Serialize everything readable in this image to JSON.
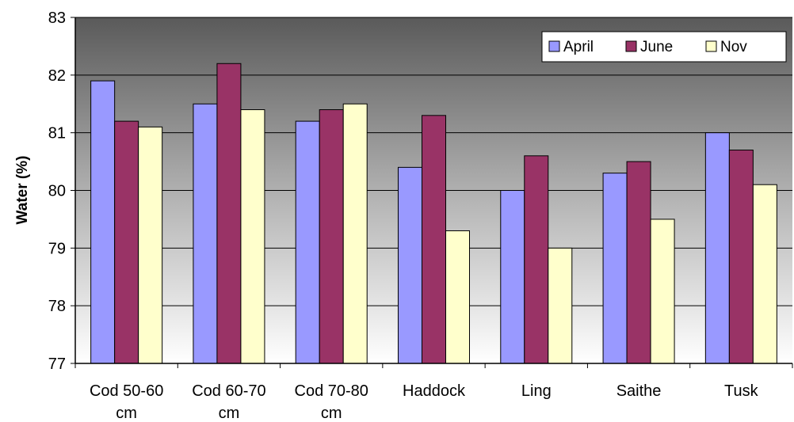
{
  "chart_data": {
    "type": "bar",
    "title": "",
    "xlabel": "",
    "ylabel": "Water (%)",
    "ylim": [
      77,
      83
    ],
    "yticks": [
      77,
      78,
      79,
      80,
      81,
      82,
      83
    ],
    "grid": true,
    "legend_position": "top-right",
    "categories": [
      [
        "Cod 50-60",
        "cm"
      ],
      [
        "Cod 60-70",
        "cm"
      ],
      [
        "Cod 70-80",
        "cm"
      ],
      [
        "Haddock"
      ],
      [
        "Ling"
      ],
      [
        "Saithe"
      ],
      [
        "Tusk"
      ]
    ],
    "series": [
      {
        "name": "April",
        "color": "#9999ff",
        "values": [
          81.9,
          81.5,
          81.2,
          80.4,
          80.0,
          80.3,
          81.0
        ]
      },
      {
        "name": "June",
        "color": "#993366",
        "values": [
          81.2,
          82.2,
          81.4,
          81.3,
          80.6,
          80.5,
          80.7
        ]
      },
      {
        "name": "Nov",
        "color": "#ffffcc",
        "values": [
          81.1,
          81.4,
          81.5,
          79.3,
          79.0,
          79.5,
          80.1
        ]
      }
    ]
  }
}
